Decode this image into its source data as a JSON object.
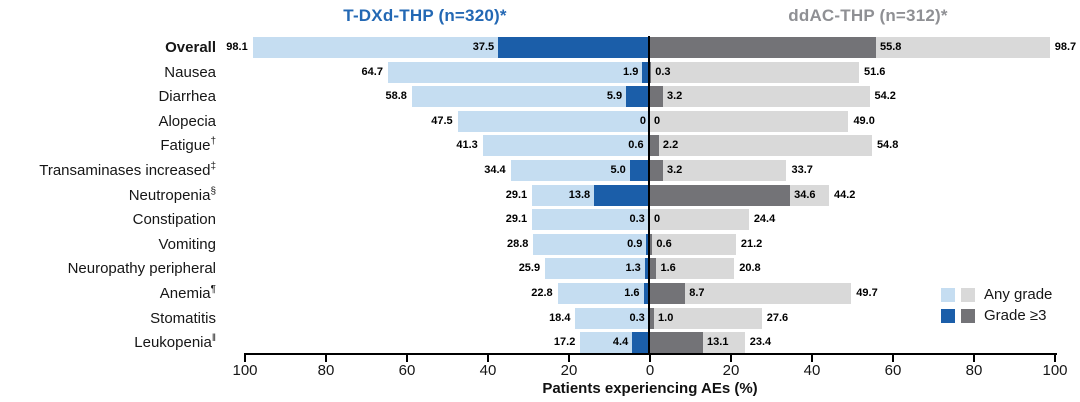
{
  "chart_data": {
    "type": "bar",
    "variant": "tornado-butterfly",
    "left_group_title": "T-DXd-THP (n=320)*",
    "right_group_title": "ddAC-THP (n=312)*",
    "xlabel": "Patients experiencing AEs (%)",
    "axis_ticks": [
      "100",
      "80",
      "60",
      "40",
      "20",
      "0",
      "20",
      "40",
      "60",
      "80",
      "100"
    ],
    "xlim_each_side": [
      0,
      100
    ],
    "grid": false,
    "legend_position": "bottom-right",
    "legend": [
      {
        "label": "Any grade"
      },
      {
        "label": "Grade ≥3"
      }
    ],
    "series_names": [
      "T-DXd-THP any grade",
      "T-DXd-THP grade ≥3",
      "ddAC-THP grade ≥3",
      "ddAC-THP any grade"
    ],
    "rows": [
      {
        "label": "Overall",
        "sup": "",
        "bold": true,
        "tdxd_any": 98.1,
        "tdxd_any_t": "98.1",
        "tdxd_g3": 37.5,
        "tdxd_g3_t": "37.5",
        "ddac_g3": 55.8,
        "ddac_g3_t": "55.8",
        "ddac_any": 98.7,
        "ddac_any_t": "98.7"
      },
      {
        "label": "Nausea",
        "sup": "",
        "bold": false,
        "tdxd_any": 64.7,
        "tdxd_any_t": "64.7",
        "tdxd_g3": 1.9,
        "tdxd_g3_t": "1.9",
        "ddac_g3": 0.3,
        "ddac_g3_t": "0.3",
        "ddac_any": 51.6,
        "ddac_any_t": "51.6"
      },
      {
        "label": "Diarrhea",
        "sup": "",
        "bold": false,
        "tdxd_any": 58.8,
        "tdxd_any_t": "58.8",
        "tdxd_g3": 5.9,
        "tdxd_g3_t": "5.9",
        "ddac_g3": 3.2,
        "ddac_g3_t": "3.2",
        "ddac_any": 54.2,
        "ddac_any_t": "54.2"
      },
      {
        "label": "Alopecia",
        "sup": "",
        "bold": false,
        "tdxd_any": 47.5,
        "tdxd_any_t": "47.5",
        "tdxd_g3": 0,
        "tdxd_g3_t": "0",
        "ddac_g3": 0,
        "ddac_g3_t": "0",
        "ddac_any": 49.0,
        "ddac_any_t": "49.0"
      },
      {
        "label": "Fatigue",
        "sup": "†",
        "bold": false,
        "tdxd_any": 41.3,
        "tdxd_any_t": "41.3",
        "tdxd_g3": 0.6,
        "tdxd_g3_t": "0.6",
        "ddac_g3": 2.2,
        "ddac_g3_t": "2.2",
        "ddac_any": 54.8,
        "ddac_any_t": "54.8"
      },
      {
        "label": "Transaminases increased",
        "sup": "‡",
        "bold": false,
        "tdxd_any": 34.4,
        "tdxd_any_t": "34.4",
        "tdxd_g3": 5.0,
        "tdxd_g3_t": "5.0",
        "ddac_g3": 3.2,
        "ddac_g3_t": "3.2",
        "ddac_any": 33.7,
        "ddac_any_t": "33.7"
      },
      {
        "label": "Neutropenia",
        "sup": "§",
        "bold": false,
        "tdxd_any": 29.1,
        "tdxd_any_t": "29.1",
        "tdxd_g3": 13.8,
        "tdxd_g3_t": "13.8",
        "ddac_g3": 34.6,
        "ddac_g3_t": "34.6",
        "ddac_any": 44.2,
        "ddac_any_t": "44.2"
      },
      {
        "label": "Constipation",
        "sup": "",
        "bold": false,
        "tdxd_any": 29.1,
        "tdxd_any_t": "29.1",
        "tdxd_g3": 0.3,
        "tdxd_g3_t": "0.3",
        "ddac_g3": 0,
        "ddac_g3_t": "0",
        "ddac_any": 24.4,
        "ddac_any_t": "24.4"
      },
      {
        "label": "Vomiting",
        "sup": "",
        "bold": false,
        "tdxd_any": 28.8,
        "tdxd_any_t": "28.8",
        "tdxd_g3": 0.9,
        "tdxd_g3_t": "0.9",
        "ddac_g3": 0.6,
        "ddac_g3_t": "0.6",
        "ddac_any": 21.2,
        "ddac_any_t": "21.2"
      },
      {
        "label": "Neuropathy peripheral",
        "sup": "",
        "bold": false,
        "tdxd_any": 25.9,
        "tdxd_any_t": "25.9",
        "tdxd_g3": 1.3,
        "tdxd_g3_t": "1.3",
        "ddac_g3": 1.6,
        "ddac_g3_t": "1.6",
        "ddac_any": 20.8,
        "ddac_any_t": "20.8"
      },
      {
        "label": "Anemia",
        "sup": "¶",
        "bold": false,
        "tdxd_any": 22.8,
        "tdxd_any_t": "22.8",
        "tdxd_g3": 1.6,
        "tdxd_g3_t": "1.6",
        "ddac_g3": 8.7,
        "ddac_g3_t": "8.7",
        "ddac_any": 49.7,
        "ddac_any_t": "49.7"
      },
      {
        "label": "Stomatitis",
        "sup": "",
        "bold": false,
        "tdxd_any": 18.4,
        "tdxd_any_t": "18.4",
        "tdxd_g3": 0.3,
        "tdxd_g3_t": "0.3",
        "ddac_g3": 1.0,
        "ddac_g3_t": "1.0",
        "ddac_any": 27.6,
        "ddac_any_t": "27.6"
      },
      {
        "label": "Leukopenia",
        "sup": "‖",
        "bold": false,
        "tdxd_any": 17.2,
        "tdxd_any_t": "17.2",
        "tdxd_g3": 4.4,
        "tdxd_g3_t": "4.4",
        "ddac_g3": 13.1,
        "ddac_g3_t": "13.1",
        "ddac_any": 23.4,
        "ddac_any_t": "23.4"
      }
    ],
    "colors": {
      "tdxd_any": "#C5DDF1",
      "tdxd_g3": "#1B5EA9",
      "ddac_any": "#D9D9D9",
      "ddac_g3": "#737377",
      "left_title": "#2368B4",
      "right_title": "#8F9094",
      "axis": "#000000"
    }
  }
}
